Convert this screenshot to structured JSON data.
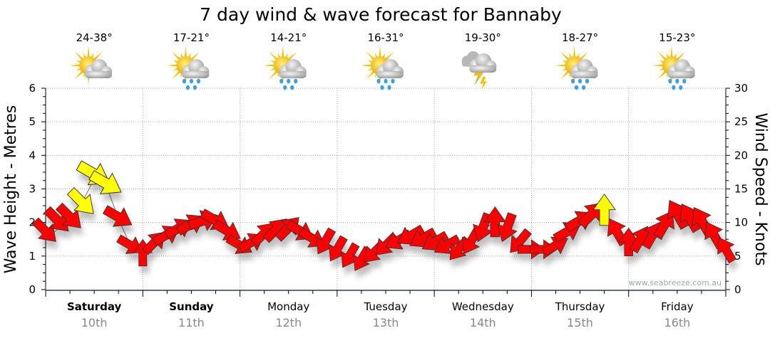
{
  "chart_data": {
    "type": "scatter",
    "title": "7 day wind & wave forecast for Bannaby",
    "ylabel_left": "Wave Height - Metres",
    "ylabel_right": "Wind Speed - Knots",
    "ylim_left": [
      0,
      6
    ],
    "ylim_right": [
      0,
      30
    ],
    "yticks_left": [
      "0",
      "1",
      "2",
      "3",
      "4",
      "5",
      "6"
    ],
    "yticks_right": [
      "0",
      "5",
      "10",
      "15",
      "20",
      "25",
      "30"
    ],
    "grid": true,
    "watermark": "www.seabreeze.com.au",
    "days": [
      {
        "name": "Saturday",
        "date": "10th",
        "temp": "24-38°",
        "icon": "partly-cloudy",
        "bold": true
      },
      {
        "name": "Sunday",
        "date": "11th",
        "temp": "17-21°",
        "icon": "sun-showers",
        "bold": true
      },
      {
        "name": "Monday",
        "date": "12th",
        "temp": "14-21°",
        "icon": "sun-showers",
        "bold": false
      },
      {
        "name": "Tuesday",
        "date": "13th",
        "temp": "16-31°",
        "icon": "sun-showers",
        "bold": false
      },
      {
        "name": "Wednesday",
        "date": "14th",
        "temp": "19-30°",
        "icon": "thunderstorm",
        "bold": false
      },
      {
        "name": "Thursday",
        "date": "15th",
        "temp": "18-27°",
        "icon": "sun-showers",
        "bold": false
      },
      {
        "name": "Friday",
        "date": "16th",
        "temp": "15-23°",
        "icon": "sun-showers",
        "bold": false
      }
    ],
    "hours_step": 3,
    "wind_knots": [
      8.7,
      10.3,
      10.8,
      13,
      17.2,
      15.8,
      10.8,
      6.6,
      5.5,
      7.1,
      8.2,
      9.2,
      9.8,
      10.3,
      10.3,
      8.7,
      6.6,
      7.1,
      8.4,
      9.0,
      9.2,
      8.7,
      7.6,
      7.1,
      6.0,
      5.0,
      4.5,
      5.5,
      6.6,
      7.3,
      8.0,
      7.6,
      7.1,
      6.6,
      6.0,
      7.1,
      9.2,
      10.1,
      9.2,
      7.1,
      6.0,
      6.0,
      6.6,
      8.7,
      10.3,
      11.3,
      11.9,
      8.7,
      7.1,
      7.6,
      8.2,
      9.8,
      11.3,
      10.8,
      10.3,
      8.2,
      6.0
    ],
    "wind_toward_deg": [
      135,
      135,
      135,
      135,
      120,
      120,
      120,
      120,
      0,
      45,
      60,
      60,
      60,
      70,
      120,
      120,
      120,
      60,
      45,
      45,
      45,
      120,
      120,
      210,
      210,
      210,
      210,
      225,
      225,
      240,
      240,
      240,
      240,
      240,
      220,
      210,
      200,
      0,
      200,
      220,
      90,
      90,
      60,
      60,
      60,
      45,
      0,
      330,
      0,
      30,
      30,
      30,
      330,
      330,
      330,
      330,
      330
    ],
    "wind_color": [
      "r",
      "r",
      "r",
      "y",
      "y",
      "y",
      "r",
      "r",
      "r",
      "r",
      "r",
      "r",
      "r",
      "r",
      "r",
      "r",
      "r",
      "r",
      "r",
      "r",
      "r",
      "r",
      "r",
      "r",
      "r",
      "r",
      "r",
      "r",
      "r",
      "r",
      "r",
      "r",
      "r",
      "r",
      "r",
      "r",
      "r",
      "r",
      "r",
      "r",
      "r",
      "r",
      "r",
      "r",
      "r",
      "r",
      "y",
      "r",
      "r",
      "r",
      "r",
      "r",
      "r",
      "r",
      "r",
      "r",
      "r"
    ],
    "wave_m": [
      1.5,
      1.8,
      2.0,
      2.6,
      3.3,
      3.1,
      2.1,
      1.3,
      1.1,
      1.4,
      1.6,
      1.8,
      2.0,
      2.1,
      2.0,
      1.7,
      1.3,
      1.4,
      1.7,
      1.8,
      1.8,
      1.7,
      1.5,
      1.4,
      1.2,
      1.0,
      0.9,
      1.1,
      1.3,
      1.5,
      1.6,
      1.5,
      1.4,
      1.3,
      1.2,
      1.4,
      1.8,
      2.0,
      1.8,
      1.4,
      1.2,
      1.2,
      1.3,
      1.7,
      2.1,
      2.3,
      2.4,
      1.7,
      1.4,
      1.5,
      1.6,
      2.0,
      2.3,
      2.2,
      2.1,
      1.6,
      1.2
    ],
    "colors": {
      "r": "#ff0000",
      "y": "#ffff00",
      "axis": "#1f3f5f",
      "grid": "#aaaaaa",
      "wave_line": "#888888"
    }
  }
}
